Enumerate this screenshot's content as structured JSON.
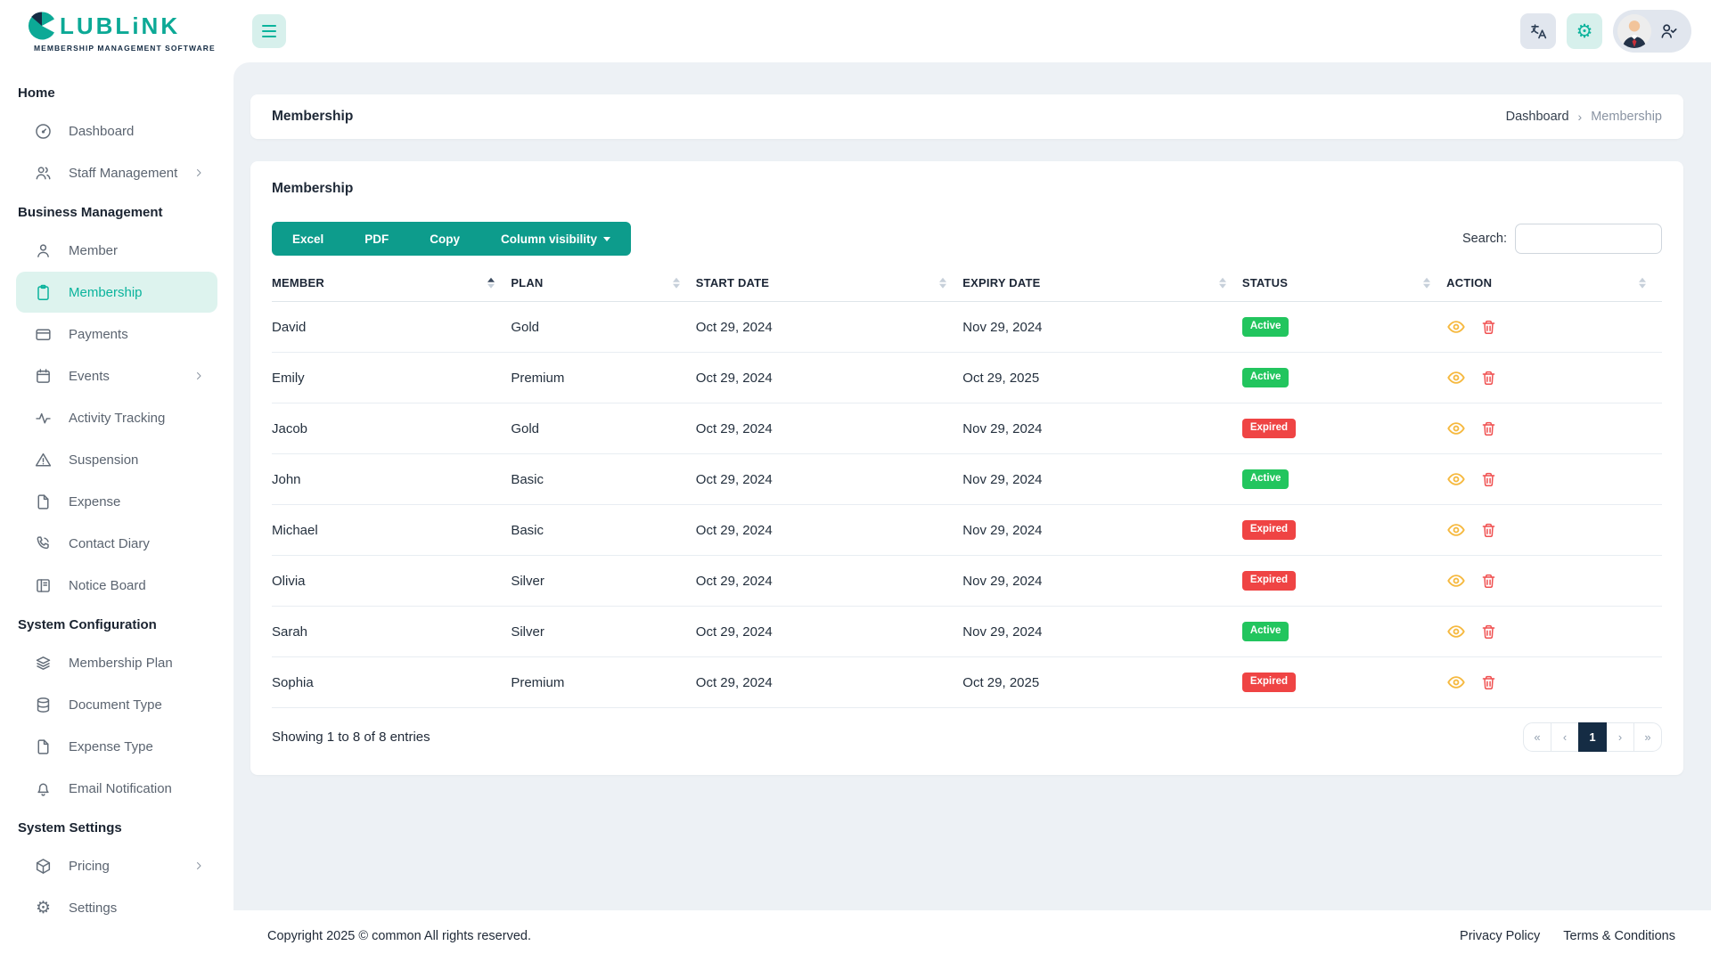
{
  "brand": {
    "logo_text": "LUBLiNK",
    "tagline": "MEMBERSHIP MANAGEMENT SOFTWARE"
  },
  "sidebar": {
    "sections": [
      {
        "title": "Home",
        "items": [
          {
            "label": "Dashboard",
            "icon": "dashboard-icon"
          },
          {
            "label": "Staff Management",
            "icon": "staff-icon",
            "chevron": true
          }
        ]
      },
      {
        "title": "Business Management",
        "items": [
          {
            "label": "Member",
            "icon": "member-icon"
          },
          {
            "label": "Membership",
            "icon": "clipboard-icon",
            "active": true
          },
          {
            "label": "Payments",
            "icon": "credit-card-icon"
          },
          {
            "label": "Events",
            "icon": "calendar-icon",
            "chevron": true
          },
          {
            "label": "Activity Tracking",
            "icon": "activity-icon"
          },
          {
            "label": "Suspension",
            "icon": "warning-icon"
          },
          {
            "label": "Expense",
            "icon": "file-icon"
          },
          {
            "label": "Contact Diary",
            "icon": "phone-icon"
          },
          {
            "label": "Notice Board",
            "icon": "board-icon"
          }
        ]
      },
      {
        "title": "System Configuration",
        "items": [
          {
            "label": "Membership Plan",
            "icon": "layers-icon"
          },
          {
            "label": "Document Type",
            "icon": "database-icon"
          },
          {
            "label": "Expense Type",
            "icon": "file-icon"
          },
          {
            "label": "Email Notification",
            "icon": "bell-icon"
          }
        ]
      },
      {
        "title": "System Settings",
        "items": [
          {
            "label": "Pricing",
            "icon": "package-icon",
            "chevron": true
          },
          {
            "label": "Settings",
            "icon": "gear-icon"
          }
        ]
      }
    ]
  },
  "page": {
    "title": "Membership",
    "breadcrumbs": [
      "Dashboard",
      "Membership"
    ]
  },
  "card": {
    "title": "Membership",
    "export_buttons": [
      {
        "label": "Excel"
      },
      {
        "label": "PDF"
      },
      {
        "label": "Copy"
      },
      {
        "label": "Column visibility",
        "dropdown": true
      }
    ],
    "search_label": "Search:",
    "search_value": ""
  },
  "table": {
    "columns": [
      {
        "label": "MEMBER",
        "sorted": "asc"
      },
      {
        "label": "PLAN"
      },
      {
        "label": "START DATE"
      },
      {
        "label": "EXPIRY DATE"
      },
      {
        "label": "STATUS"
      },
      {
        "label": "ACTION"
      }
    ],
    "rows": [
      {
        "member": "David",
        "plan": "Gold",
        "start": "Oct 29, 2024",
        "expiry": "Nov 29, 2024",
        "status": "Active"
      },
      {
        "member": "Emily",
        "plan": "Premium",
        "start": "Oct 29, 2024",
        "expiry": "Oct 29, 2025",
        "status": "Active"
      },
      {
        "member": "Jacob",
        "plan": "Gold",
        "start": "Oct 29, 2024",
        "expiry": "Nov 29, 2024",
        "status": "Expired"
      },
      {
        "member": "John",
        "plan": "Basic",
        "start": "Oct 29, 2024",
        "expiry": "Nov 29, 2024",
        "status": "Active"
      },
      {
        "member": "Michael",
        "plan": "Basic",
        "start": "Oct 29, 2024",
        "expiry": "Nov 29, 2024",
        "status": "Expired"
      },
      {
        "member": "Olivia",
        "plan": "Silver",
        "start": "Oct 29, 2024",
        "expiry": "Nov 29, 2024",
        "status": "Expired"
      },
      {
        "member": "Sarah",
        "plan": "Silver",
        "start": "Oct 29, 2024",
        "expiry": "Nov 29, 2024",
        "status": "Active"
      },
      {
        "member": "Sophia",
        "plan": "Premium",
        "start": "Oct 29, 2024",
        "expiry": "Oct 29, 2025",
        "status": "Expired"
      }
    ],
    "summary": "Showing 1 to 8 of 8 entries",
    "pagination": {
      "items": [
        "«",
        "‹",
        "1",
        "›",
        "»"
      ],
      "active_index": 2
    }
  },
  "footer": {
    "copyright": "Copyright 2025 © common All rights reserved.",
    "links": [
      "Privacy Policy",
      "Terms & Conditions"
    ]
  },
  "colors": {
    "brand_teal": "#0ca996",
    "button_teal": "#0d9c8c",
    "active_item_bg": "#ddf3ee",
    "navy": "#152c44",
    "status_active": "#22c55e",
    "status_expired": "#ef4444",
    "eye_icon": "#f6b93f",
    "trash_icon": "#f05151",
    "content_bg": "#edf1f5"
  }
}
